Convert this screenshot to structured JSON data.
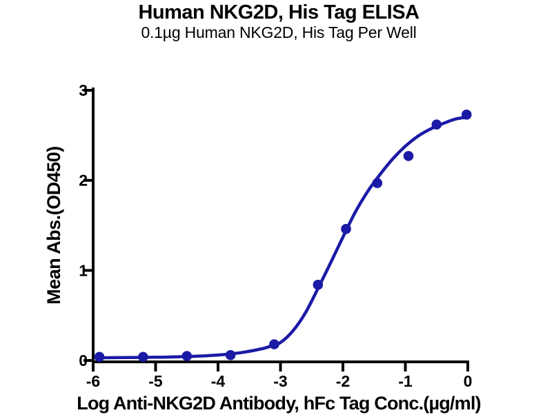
{
  "chart_data": {
    "type": "scatter",
    "title": "Human NKG2D, His Tag ELISA",
    "subtitle": "0.1µg Human NKG2D, His Tag Per Well",
    "xlabel": "Log Anti-NKG2D Antibody, hFc Tag Conc.(µg/ml)",
    "ylabel": "Mean Abs.(OD450)",
    "xlim": [
      -6,
      0
    ],
    "ylim": [
      0,
      3
    ],
    "x_ticks": [
      "-6",
      "-5",
      "-4",
      "-3",
      "-2",
      "-1",
      "0"
    ],
    "x_tick_values": [
      -6,
      -5,
      -4,
      -3,
      -2,
      -1,
      0
    ],
    "y_ticks": [
      "0",
      "1",
      "2",
      "3"
    ],
    "y_tick_values": [
      0,
      1,
      2,
      3
    ],
    "grid": false,
    "legend": false,
    "axis_color": "#000000",
    "marker_color": "#1a1aa6",
    "line_color": "#1a1aa6",
    "points": [
      {
        "x": -5.9,
        "y": 0.04
      },
      {
        "x": -5.2,
        "y": 0.04
      },
      {
        "x": -4.5,
        "y": 0.05
      },
      {
        "x": -3.8,
        "y": 0.06
      },
      {
        "x": -3.1,
        "y": 0.18
      },
      {
        "x": -2.4,
        "y": 0.84
      },
      {
        "x": -1.95,
        "y": 1.46
      },
      {
        "x": -1.45,
        "y": 1.97
      },
      {
        "x": -0.95,
        "y": 2.27
      },
      {
        "x": -0.5,
        "y": 2.62
      },
      {
        "x": -0.02,
        "y": 2.73
      }
    ],
    "fit_curve_samples": [
      [
        -5.95,
        0.03
      ],
      [
        -5.5,
        0.032
      ],
      [
        -5.0,
        0.036
      ],
      [
        -4.6,
        0.042
      ],
      [
        -4.2,
        0.052
      ],
      [
        -3.9,
        0.066
      ],
      [
        -3.6,
        0.09
      ],
      [
        -3.3,
        0.13
      ],
      [
        -3.15,
        0.16
      ],
      [
        -3.0,
        0.2
      ],
      [
        -2.8,
        0.33
      ],
      [
        -2.6,
        0.53
      ],
      [
        -2.4,
        0.8
      ],
      [
        -2.2,
        1.08
      ],
      [
        -2.0,
        1.37
      ],
      [
        -1.8,
        1.65
      ],
      [
        -1.6,
        1.88
      ],
      [
        -1.4,
        2.07
      ],
      [
        -1.2,
        2.24
      ],
      [
        -1.0,
        2.38
      ],
      [
        -0.8,
        2.49
      ],
      [
        -0.6,
        2.57
      ],
      [
        -0.4,
        2.63
      ],
      [
        -0.2,
        2.68
      ],
      [
        -0.02,
        2.7
      ]
    ]
  }
}
